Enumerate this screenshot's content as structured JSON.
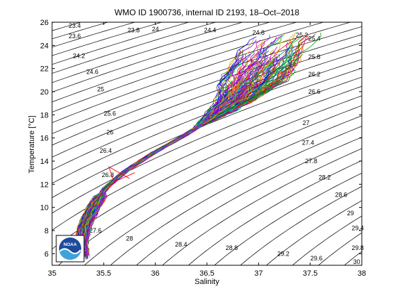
{
  "window": {
    "background": "#ffffff"
  },
  "chart_data": {
    "type": "line",
    "title": "WMO ID 1900736, internal ID 2193, 18–Oct–2018",
    "xlabel": "Salinity",
    "ylabel": "Temperature [°C]",
    "xlim": [
      35,
      38
    ],
    "ylim": [
      5,
      26
    ],
    "xticks": [
      "35",
      "35.5",
      "36",
      "36.5",
      "37",
      "37.5",
      "38"
    ],
    "yticks": [
      "6",
      "8",
      "10",
      "12",
      "14",
      "16",
      "18",
      "20",
      "22",
      "24",
      "26"
    ],
    "grid": false,
    "legend": "none",
    "logo": {
      "text": "NOAA",
      "colors": [
        "#1e4a9c",
        "#3fa2d8",
        "#ffffff"
      ]
    },
    "density_contours": [
      {
        "label": "23.4",
        "lx": 35.22,
        "ly": 25.7
      },
      {
        "label": "23.6",
        "lx": 35.22,
        "ly": 24.8
      },
      {
        "label": "23.8",
        "lx": 35.79,
        "ly": 25.3
      },
      {
        "label": "24",
        "lx": 36.0,
        "ly": 25.4
      },
      {
        "label": "24.2",
        "lx": 35.26,
        "ly": 23.1
      },
      {
        "label": "24.4",
        "lx": 36.53,
        "ly": 25.3
      },
      {
        "label": "24.6",
        "lx": 35.39,
        "ly": 21.7
      },
      {
        "label": "24.8",
        "lx": 37.0,
        "ly": 25.1
      },
      {
        "label": "25",
        "lx": 35.47,
        "ly": 20.2
      },
      {
        "label": "25.2",
        "lx": 37.42,
        "ly": 24.9
      },
      {
        "label": "25.4",
        "lx": 37.54,
        "ly": 24.6
      },
      {
        "label": "25.6",
        "lx": 35.56,
        "ly": 18.1
      },
      {
        "label": "25.8",
        "lx": 37.54,
        "ly": 23.0
      },
      {
        "label": "26",
        "lx": 35.56,
        "ly": 16.5
      },
      {
        "label": "26.2",
        "lx": 37.54,
        "ly": 21.5
      },
      {
        "label": "26.4",
        "lx": 35.52,
        "ly": 14.9
      },
      {
        "label": "26.6",
        "lx": 37.54,
        "ly": 20.0
      },
      {
        "label": "26.8",
        "lx": 35.54,
        "ly": 12.8
      },
      {
        "label": "27",
        "lx": 37.46,
        "ly": 17.3
      },
      {
        "label": "27.2",
        "lx": 35.45,
        "ly": 10.6
      },
      {
        "label": "27.4",
        "lx": 37.48,
        "ly": 15.6
      },
      {
        "label": "27.6",
        "lx": 35.42,
        "ly": 8.0
      },
      {
        "label": "27.8",
        "lx": 37.51,
        "ly": 14.0
      },
      {
        "label": "28",
        "lx": 35.75,
        "ly": 7.3
      },
      {
        "label": "28.2",
        "lx": 37.64,
        "ly": 12.6
      },
      {
        "label": "28.4",
        "lx": 36.25,
        "ly": 6.8
      },
      {
        "label": "28.6",
        "lx": 37.8,
        "ly": 11.1
      },
      {
        "label": "28.8",
        "lx": 36.74,
        "ly": 6.5
      },
      {
        "label": "29",
        "lx": 37.89,
        "ly": 9.5
      },
      {
        "label": "29.2",
        "lx": 37.24,
        "ly": 6.0
      },
      {
        "label": "29.4",
        "lx": 37.96,
        "ly": 8.2
      },
      {
        "label": "29.6",
        "lx": 37.56,
        "ly": 5.6
      },
      {
        "label": "29.8",
        "lx": 37.96,
        "ly": 6.5
      },
      {
        "label": "30",
        "lx": 37.95,
        "ly": 5.3
      }
    ],
    "ts_envelope": [
      [
        35.3,
        5.6
      ],
      [
        35.28,
        7.0
      ],
      [
        35.32,
        8.5
      ],
      [
        35.4,
        10.0
      ],
      [
        35.52,
        11.7
      ],
      [
        35.72,
        13.2
      ],
      [
        36.0,
        14.8
      ],
      [
        36.3,
        16.3
      ],
      [
        36.55,
        17.8
      ],
      [
        36.78,
        19.3
      ],
      [
        36.95,
        21.0
      ],
      [
        37.08,
        22.8
      ],
      [
        37.2,
        24.3
      ],
      [
        37.3,
        25.2
      ]
    ],
    "profile_count": 180,
    "line_colors": [
      "#0000ff",
      "#ff0000",
      "#00aa00",
      "#00bfbf",
      "#bf00bf",
      "#bfbf00",
      "#404040",
      "#ff8000",
      "#8000ff",
      "#008080"
    ]
  }
}
